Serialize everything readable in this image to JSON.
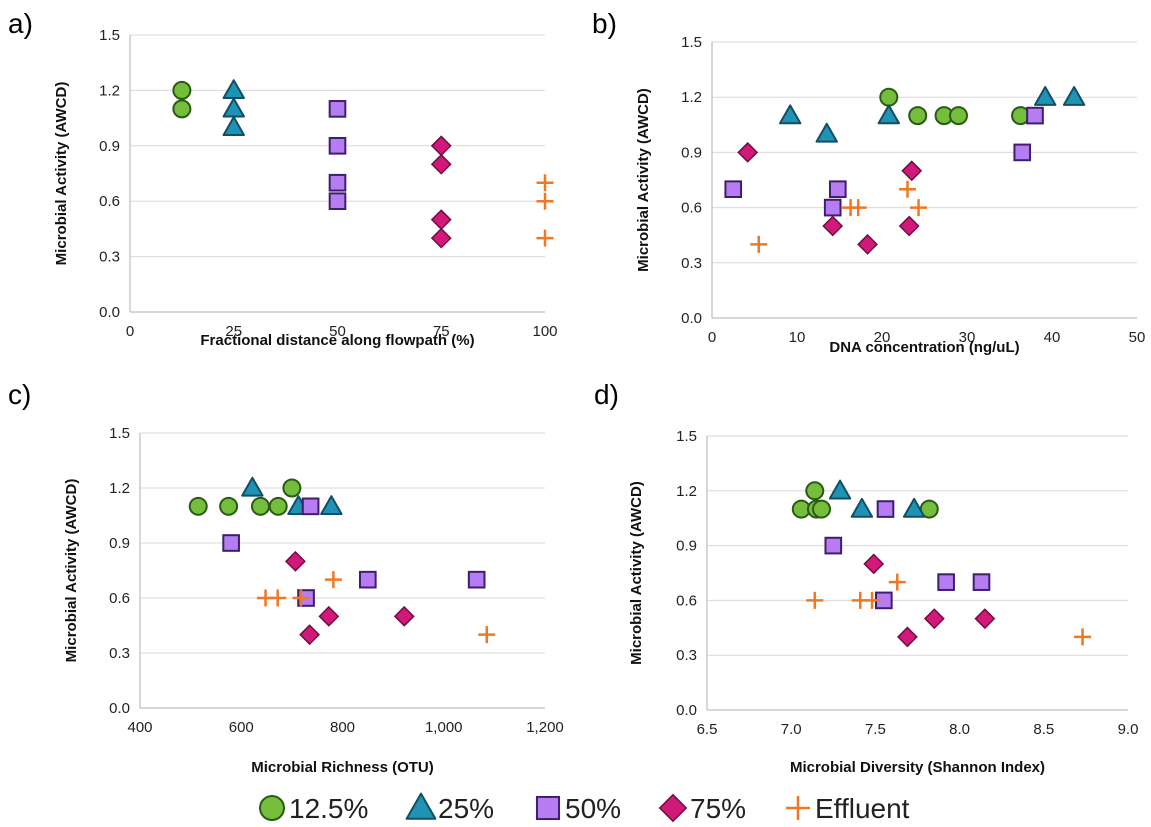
{
  "colors": {
    "s125_fill": "#74BE3C",
    "s125_stroke": "#2A5A17",
    "s25_fill": "#1E93B5",
    "s25_stroke": "#134E62",
    "s50_fill": "#B67CF2",
    "s50_stroke": "#3D1F6B",
    "s75_fill": "#D2197B",
    "s75_stroke": "#6E0D3F",
    "eff_stroke": "#F07822",
    "grid": "#D9D9D9",
    "axis": "#BFBFBF"
  },
  "legend": [
    {
      "key": "s125",
      "label": "12.5%",
      "marker": "circle"
    },
    {
      "key": "s25",
      "label": "25%",
      "marker": "triangle"
    },
    {
      "key": "s50",
      "label": "50%",
      "marker": "square"
    },
    {
      "key": "s75",
      "label": "75%",
      "marker": "diamond"
    },
    {
      "key": "eff",
      "label": "Effluent",
      "marker": "plus"
    }
  ],
  "chart_data": [
    {
      "type": "scatter",
      "panel": "a)",
      "xlabel": "Fractional distance along flowpath (%)",
      "ylabel": "Microbial Activity (AWCD)",
      "xlim": [
        0,
        100
      ],
      "ylim": [
        0,
        1.5
      ],
      "xticks": [
        0,
        25,
        50,
        75,
        100
      ],
      "xtick_labels": [
        "0",
        "25",
        "50",
        "75",
        "100"
      ],
      "yticks": [
        0,
        0.3,
        0.6,
        0.9,
        1.2,
        1.5
      ],
      "ytick_labels": [
        "0.0",
        "0.3",
        "0.6",
        "0.9",
        "1.2",
        "1.5"
      ],
      "grid": "horizontal",
      "series": [
        {
          "key": "s125",
          "name": "12.5%",
          "marker": "circle",
          "points": [
            [
              12.5,
              1.2
            ],
            [
              12.5,
              1.1
            ]
          ]
        },
        {
          "key": "s25",
          "name": "25%",
          "marker": "triangle",
          "points": [
            [
              25,
              1.2
            ],
            [
              25,
              1.1
            ],
            [
              25,
              1.0
            ]
          ]
        },
        {
          "key": "s50",
          "name": "50%",
          "marker": "square",
          "points": [
            [
              50,
              1.1
            ],
            [
              50,
              0.9
            ],
            [
              50,
              0.7
            ],
            [
              50,
              0.6
            ]
          ]
        },
        {
          "key": "s75",
          "name": "75%",
          "marker": "diamond",
          "points": [
            [
              75,
              0.9
            ],
            [
              75,
              0.8
            ],
            [
              75,
              0.5
            ],
            [
              75,
              0.4
            ]
          ]
        },
        {
          "key": "eff",
          "name": "Effluent",
          "marker": "plus",
          "points": [
            [
              100,
              0.7
            ],
            [
              100,
              0.6
            ],
            [
              100,
              0.4
            ]
          ]
        }
      ]
    },
    {
      "type": "scatter",
      "panel": "b)",
      "xlabel": "DNA concentration (ng/uL)",
      "ylabel": "Microbial Activity (AWCD)",
      "xlim": [
        0,
        50
      ],
      "ylim": [
        0,
        1.5
      ],
      "xticks": [
        0,
        10,
        20,
        30,
        40,
        50
      ],
      "xtick_labels": [
        "0",
        "10",
        "20",
        "30",
        "40",
        "50"
      ],
      "yticks": [
        0,
        0.3,
        0.6,
        0.9,
        1.2,
        1.5
      ],
      "ytick_labels": [
        "0.0",
        "0.3",
        "0.6",
        "0.9",
        "1.2",
        "1.5"
      ],
      "grid": "horizontal",
      "series": [
        {
          "key": "s125",
          "name": "12.5%",
          "marker": "circle",
          "points": [
            [
              20.8,
              1.2
            ],
            [
              24.2,
              1.1
            ],
            [
              27.3,
              1.1
            ],
            [
              29.0,
              1.1
            ],
            [
              36.3,
              1.1
            ]
          ]
        },
        {
          "key": "s25",
          "name": "25%",
          "marker": "triangle",
          "points": [
            [
              9.2,
              1.1
            ],
            [
              13.5,
              1.0
            ],
            [
              20.8,
              1.1
            ],
            [
              39.2,
              1.2
            ],
            [
              42.6,
              1.2
            ]
          ]
        },
        {
          "key": "s50",
          "name": "50%",
          "marker": "square",
          "points": [
            [
              2.5,
              0.7
            ],
            [
              14.8,
              0.7
            ],
            [
              14.2,
              0.6
            ],
            [
              36.5,
              0.9
            ],
            [
              38.0,
              1.1
            ]
          ]
        },
        {
          "key": "s75",
          "name": "75%",
          "marker": "diamond",
          "points": [
            [
              4.2,
              0.9
            ],
            [
              14.2,
              0.5
            ],
            [
              18.3,
              0.4
            ],
            [
              23.2,
              0.5
            ],
            [
              23.5,
              0.8
            ]
          ]
        },
        {
          "key": "eff",
          "name": "Effluent",
          "marker": "plus",
          "points": [
            [
              5.5,
              0.4
            ],
            [
              16.3,
              0.6
            ],
            [
              17.2,
              0.6
            ],
            [
              23.0,
              0.7
            ],
            [
              24.3,
              0.6
            ]
          ]
        }
      ]
    },
    {
      "type": "scatter",
      "panel": "c)",
      "xlabel": "Microbial Richness (OTU)",
      "ylabel": "Microbial Activity (AWCD)",
      "xlim": [
        400,
        1200
      ],
      "ylim": [
        0,
        1.5
      ],
      "xticks": [
        400,
        600,
        800,
        1000,
        1200
      ],
      "xtick_labels": [
        "400",
        "600",
        "800",
        "1,000",
        "1,200"
      ],
      "yticks": [
        0,
        0.3,
        0.6,
        0.9,
        1.2,
        1.5
      ],
      "ytick_labels": [
        "0.0",
        "0.3",
        "0.6",
        "0.9",
        "1.2",
        "1.5"
      ],
      "grid": "horizontal",
      "series": [
        {
          "key": "s125",
          "name": "12.5%",
          "marker": "circle",
          "points": [
            [
              515,
              1.1
            ],
            [
              575,
              1.1
            ],
            [
              638,
              1.1
            ],
            [
              673,
              1.1
            ],
            [
              700,
              1.2
            ]
          ]
        },
        {
          "key": "s25",
          "name": "25%",
          "marker": "triangle",
          "points": [
            [
              622,
              1.2
            ],
            [
              713,
              1.1
            ],
            [
              778,
              1.1
            ]
          ]
        },
        {
          "key": "s50",
          "name": "50%",
          "marker": "square",
          "points": [
            [
              580,
              0.9
            ],
            [
              737,
              1.1
            ],
            [
              728,
              0.6
            ],
            [
              850,
              0.7
            ],
            [
              1065,
              0.7
            ]
          ]
        },
        {
          "key": "s75",
          "name": "75%",
          "marker": "diamond",
          "points": [
            [
              707,
              0.8
            ],
            [
              735,
              0.4
            ],
            [
              773,
              0.5
            ],
            [
              922,
              0.5
            ]
          ]
        },
        {
          "key": "eff",
          "name": "Effluent",
          "marker": "plus",
          "points": [
            [
              648,
              0.6
            ],
            [
              672,
              0.6
            ],
            [
              718,
              0.6
            ],
            [
              782,
              0.7
            ],
            [
              1085,
              0.4
            ]
          ]
        }
      ]
    },
    {
      "type": "scatter",
      "panel": "d)",
      "xlabel": "Microbial Diversity (Shannon Index)",
      "ylabel": "Microbial Activity (AWCD)",
      "xlim": [
        6.5,
        9.0
      ],
      "ylim": [
        0,
        1.5
      ],
      "xticks": [
        6.5,
        7.0,
        7.5,
        8.0,
        8.5,
        9.0
      ],
      "xtick_labels": [
        "6.5",
        "7.0",
        "7.5",
        "8.0",
        "8.5",
        "9.0"
      ],
      "yticks": [
        0,
        0.3,
        0.6,
        0.9,
        1.2,
        1.5
      ],
      "ytick_labels": [
        "0.0",
        "0.3",
        "0.6",
        "0.9",
        "1.2",
        "1.5"
      ],
      "grid": "horizontal",
      "series": [
        {
          "key": "s125",
          "name": "12.5%",
          "marker": "circle",
          "points": [
            [
              7.06,
              1.1
            ],
            [
              7.14,
              1.2
            ],
            [
              7.15,
              1.1
            ],
            [
              7.18,
              1.1
            ],
            [
              7.82,
              1.1
            ]
          ]
        },
        {
          "key": "s25",
          "name": "25%",
          "marker": "triangle",
          "points": [
            [
              7.29,
              1.2
            ],
            [
              7.42,
              1.1
            ],
            [
              7.73,
              1.1
            ]
          ]
        },
        {
          "key": "s50",
          "name": "50%",
          "marker": "square",
          "points": [
            [
              7.25,
              0.9
            ],
            [
              7.56,
              1.1
            ],
            [
              7.55,
              0.6
            ],
            [
              7.92,
              0.7
            ],
            [
              8.13,
              0.7
            ]
          ]
        },
        {
          "key": "s75",
          "name": "75%",
          "marker": "diamond",
          "points": [
            [
              7.49,
              0.8
            ],
            [
              7.69,
              0.4
            ],
            [
              7.85,
              0.5
            ],
            [
              8.15,
              0.5
            ]
          ]
        },
        {
          "key": "eff",
          "name": "Effluent",
          "marker": "plus",
          "points": [
            [
              7.14,
              0.6
            ],
            [
              7.41,
              0.6
            ],
            [
              7.48,
              0.6
            ],
            [
              7.63,
              0.7
            ],
            [
              8.73,
              0.4
            ]
          ]
        }
      ]
    }
  ]
}
